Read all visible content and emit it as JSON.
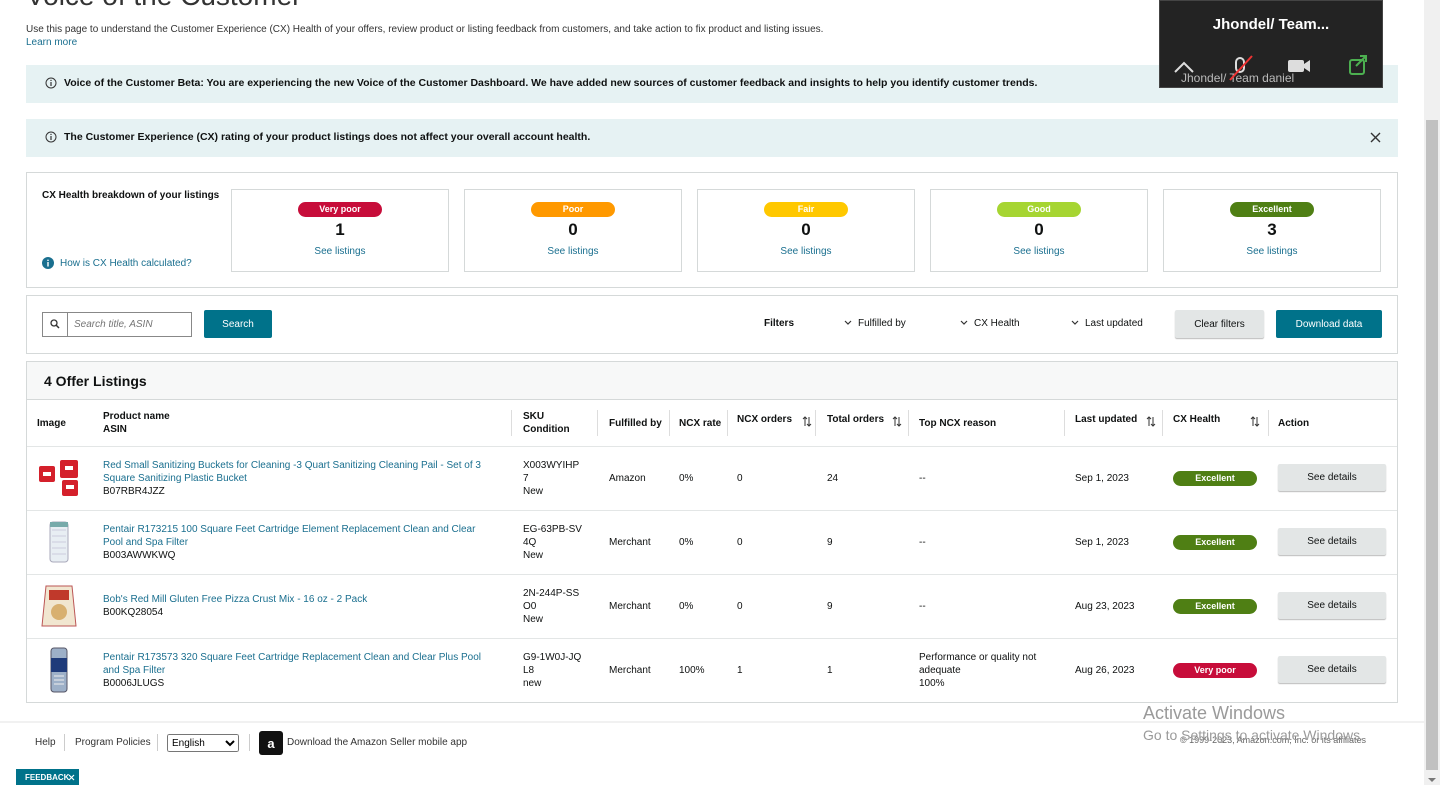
{
  "header": {
    "title": "Voice of the Customer",
    "intro": "Use this page to understand the Customer Experience (CX) Health of your offers, review product or listing feedback from customers, and take action to fix product and listing issues.",
    "learn_more": "Learn more"
  },
  "banners": [
    {
      "text": "Voice of the Customer Beta: You are experiencing the new Voice of the Customer Dashboard. We have added new sources of customer feedback and insights to help you identify customer trends."
    },
    {
      "text": "The Customer Experience (CX) rating of your product listings does not affect your overall account health."
    }
  ],
  "breakdown": {
    "title": "CX Health breakdown of your listings",
    "help": "How is CX Health calculated?",
    "cards": [
      {
        "label": "Very poor",
        "count": 1,
        "link": "See listings"
      },
      {
        "label": "Poor",
        "count": 0,
        "link": "See listings"
      },
      {
        "label": "Fair",
        "count": 0,
        "link": "See listings"
      },
      {
        "label": "Good",
        "count": 0,
        "link": "See listings"
      },
      {
        "label": "Excellent",
        "count": 3,
        "link": "See listings"
      }
    ]
  },
  "toolbar": {
    "search_placeholder": "Search title, ASIN",
    "search_button": "Search",
    "filters_label": "Filters",
    "filters": [
      "Fulfilled by",
      "CX Health",
      "Last updated"
    ],
    "clear_button": "Clear filters",
    "download_button": "Download data"
  },
  "table": {
    "title": "4 Offer Listings",
    "columns": [
      [
        "Image"
      ],
      [
        "Product name",
        "ASIN"
      ],
      [
        "SKU",
        "Condition"
      ],
      [
        "Fulfilled by"
      ],
      [
        "NCX rate"
      ],
      [
        "NCX orders"
      ],
      [
        "Total orders"
      ],
      [
        "Top NCX reason"
      ],
      [
        "Last updated"
      ],
      [
        "CX Health"
      ],
      [
        "Action"
      ]
    ],
    "rows": [
      {
        "product": "Red Small Sanitizing Buckets for Cleaning -3 Quart Sanitizing Cleaning Pail - Set of 3 Square Sanitizing Plastic Bucket",
        "asin": "B07RBR4JZZ",
        "sku": "X003WYIHP7",
        "condition": "New",
        "fulfilled_by": "Amazon",
        "ncx_rate": "0%",
        "ncx_orders": 0,
        "total_orders": 24,
        "top_ncx_reason": "--",
        "last_updated": "Sep 1, 2023",
        "cx_health": "Excellent",
        "action": "See details"
      },
      {
        "product": "Pentair R173215 100 Square Feet Cartridge Element Replacement Clean and Clear Pool and Spa Filter",
        "asin": "B003AWWKWQ",
        "sku": "EG-63PB-SV4Q",
        "condition": "New",
        "fulfilled_by": "Merchant",
        "ncx_rate": "0%",
        "ncx_orders": 0,
        "total_orders": 9,
        "top_ncx_reason": "--",
        "last_updated": "Sep 1, 2023",
        "cx_health": "Excellent",
        "action": "See details"
      },
      {
        "product": "Bob's Red Mill Gluten Free Pizza Crust Mix - 16 oz - 2 Pack",
        "asin": "B00KQ28054",
        "sku": "2N-244P-SSO0",
        "condition": "New",
        "fulfilled_by": "Merchant",
        "ncx_rate": "0%",
        "ncx_orders": 0,
        "total_orders": 9,
        "top_ncx_reason": "--",
        "last_updated": "Aug 23, 2023",
        "cx_health": "Excellent",
        "action": "See details"
      },
      {
        "product": "Pentair R173573 320 Square Feet Cartridge Replacement Clean and Clear Plus Pool and Spa Filter",
        "asin": "B0006JLUGS",
        "sku": "G9-1W0J-JQL8",
        "condition": "new",
        "fulfilled_by": "Merchant",
        "ncx_rate": "100%",
        "ncx_orders": 1,
        "total_orders": 1,
        "top_ncx_reason": "Performance or quality not adequate",
        "top_ncx_share": "100%",
        "last_updated": "Aug 26, 2023",
        "cx_health": "Very poor",
        "action": "See details"
      }
    ]
  },
  "footer": {
    "help": "Help",
    "policies": "Program Policies",
    "language": "English",
    "app": "Download the Amazon Seller mobile app",
    "copyright": "© 1999-2023, Amazon.com, Inc. or its affiliates"
  },
  "overlay": {
    "name": "Jhondel/ Team...",
    "subname": "Jhondel/ Team daniel"
  },
  "watermark": {
    "line1": "Activate Windows",
    "line2": "Go to Settings to activate Windows."
  },
  "feedback": "FEEDBACK"
}
